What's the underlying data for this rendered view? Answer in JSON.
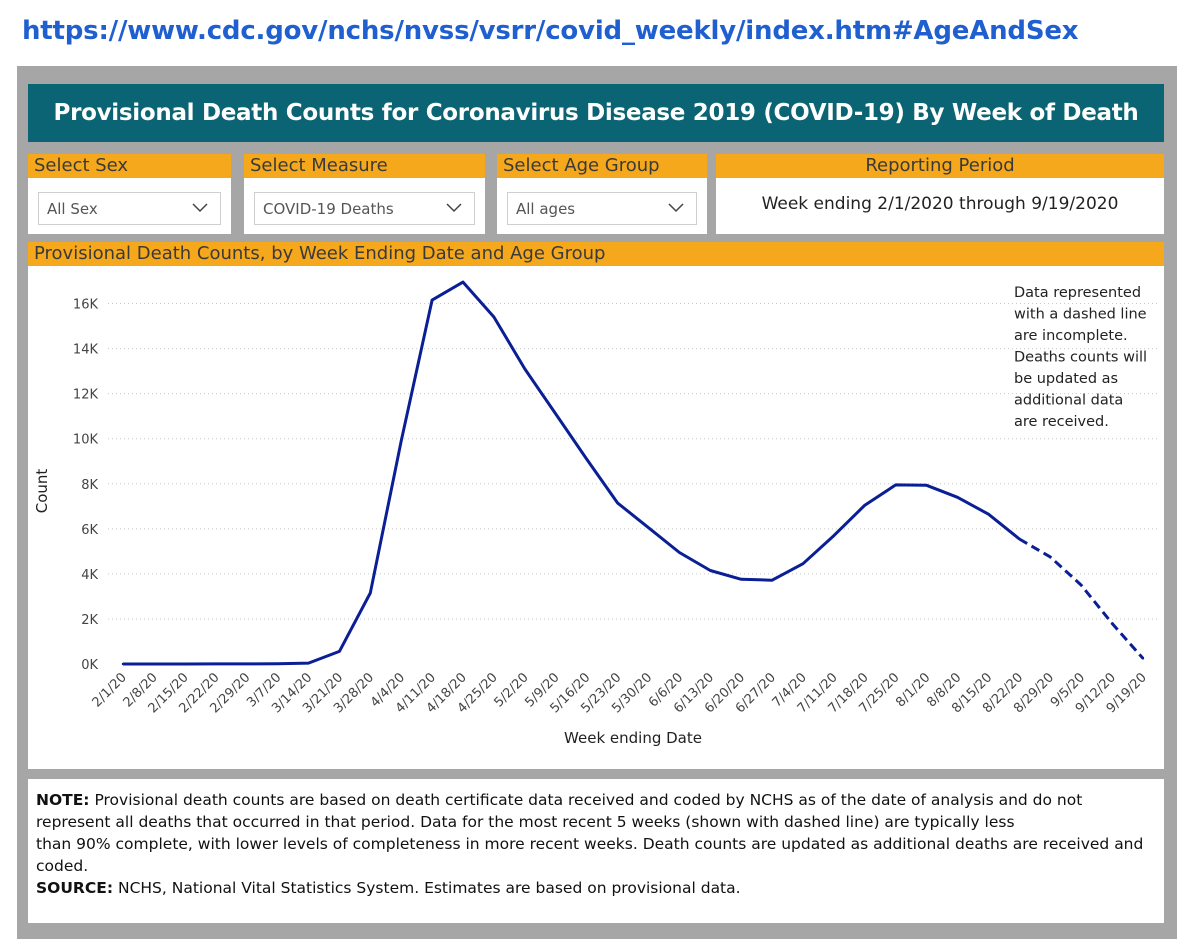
{
  "url": "https://www.cdc.gov/nchs/nvss/vsrr/covid_weekly/index.htm#AgeAndSex",
  "title": "Provisional Death Counts for Coronavirus Disease 2019 (COVID-19) By Week of Death",
  "filters": {
    "sex": {
      "label": "Select Sex",
      "value": "All Sex"
    },
    "measure": {
      "label": "Select Measure",
      "value": "COVID-19 Deaths"
    },
    "age": {
      "label": "Select Age Group",
      "value": "All ages"
    },
    "period": {
      "label": "Reporting Period",
      "value": "Week ending 2/1/2020 through 9/19/2020"
    }
  },
  "chart_header": "Provisional Death Counts, by Week Ending Date and Age Group",
  "chart_note": [
    "Data represented",
    "with a dashed line",
    "are incomplete.",
    "Deaths counts will",
    "be updated as",
    "additional data",
    "are received."
  ],
  "chart_data": {
    "type": "line",
    "xlabel": "Week ending Date",
    "ylabel": "Count",
    "ylim": [
      0,
      17000
    ],
    "yticks": [
      0,
      2000,
      4000,
      6000,
      8000,
      10000,
      12000,
      14000,
      16000
    ],
    "ytick_labels": [
      "0K",
      "2K",
      "4K",
      "6K",
      "8K",
      "10K",
      "12K",
      "14K",
      "16K"
    ],
    "grid": true,
    "x": [
      "2/1/20",
      "2/8/20",
      "2/15/20",
      "2/22/20",
      "2/29/20",
      "3/7/20",
      "3/14/20",
      "3/21/20",
      "3/28/20",
      "4/4/20",
      "4/11/20",
      "4/18/20",
      "4/25/20",
      "5/2/20",
      "5/9/20",
      "5/16/20",
      "5/23/20",
      "5/30/20",
      "6/6/20",
      "6/13/20",
      "6/20/20",
      "6/27/20",
      "7/4/20",
      "7/11/20",
      "7/18/20",
      "7/25/20",
      "8/1/20",
      "8/8/20",
      "8/15/20",
      "8/22/20",
      "8/29/20",
      "9/5/20",
      "9/12/20",
      "9/19/20"
    ],
    "values": [
      0,
      0,
      0,
      5,
      5,
      10,
      40,
      560,
      3150,
      9900,
      16150,
      16950,
      15400,
      13100,
      11100,
      9100,
      7150,
      6050,
      4950,
      4150,
      3760,
      3720,
      4450,
      5700,
      7050,
      7950,
      7930,
      7400,
      6650,
      5550,
      4750,
      3500,
      1800,
      250
    ],
    "incomplete_from": "8/22/20",
    "line_color": "#0a1f96"
  },
  "note": {
    "note_label": "NOTE:",
    "note_text": "Provisional death counts are based on death certificate data received and coded by NCHS as of the date of analysis and do not represent all deaths that occurred in that period. Data for the most recent 5 weeks (shown with dashed line) are typically less",
    "note_text2": "than 90% complete, with lower levels of completeness in more recent weeks.  Death counts are updated as additional deaths are received and coded.",
    "source_label": "SOURCE:",
    "source_text": "NCHS, National Vital Statistics System. Estimates are based on provisional data."
  }
}
